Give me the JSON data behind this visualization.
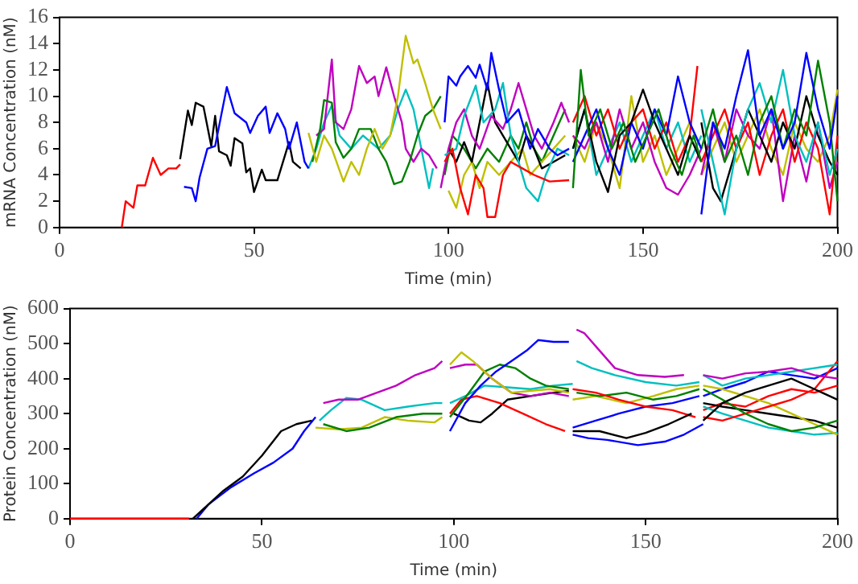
{
  "chart_data": [
    {
      "type": "line",
      "xlabel": "Time (min)",
      "ylabel": "mRNA Concentration (nM)",
      "xlim": [
        0,
        200
      ],
      "xticks": [
        0,
        50,
        100,
        150,
        200
      ],
      "ylim": [
        0,
        16
      ],
      "yticks": [
        0,
        2,
        4,
        6,
        8,
        10,
        12,
        14,
        16
      ],
      "grid": false,
      "legend": false,
      "marker": "none",
      "line_style": "solid",
      "series": [
        {
          "color": "#ff0000",
          "x": [
            16,
            17,
            19,
            20,
            22,
            24,
            26,
            28,
            30,
            31
          ],
          "values": [
            0,
            2,
            1.5,
            3.2,
            3.2,
            5.3,
            4,
            4.5,
            4.5,
            4.8
          ]
        },
        {
          "color": "#0000ff",
          "x": [
            32,
            34,
            35,
            36,
            38,
            40,
            43,
            45,
            48,
            49,
            51,
            53,
            54,
            56,
            58,
            59,
            61,
            62,
            63,
            64
          ],
          "values": [
            3.1,
            3,
            2,
            3.8,
            6,
            6.2,
            10.7,
            8.7,
            8,
            7.2,
            8.5,
            9.2,
            7.2,
            8.7,
            7.5,
            6,
            8,
            6.5,
            5,
            4.5
          ]
        },
        {
          "color": "#000000",
          "x": [
            31,
            33,
            34,
            35,
            37,
            39,
            40,
            41,
            43,
            44,
            45,
            47,
            48,
            49,
            50,
            52,
            53,
            56,
            59,
            60,
            62
          ],
          "values": [
            5.2,
            8.9,
            7.8,
            9.5,
            9.2,
            6.2,
            8.5,
            5.8,
            5.5,
            4.7,
            6.8,
            6.4,
            4.2,
            4.5,
            2.7,
            4.4,
            3.6,
            3.6,
            6.5,
            5,
            4.5
          ]
        },
        {
          "color": "#bfbf00",
          "x": [
            64,
            66,
            68,
            70,
            73,
            75,
            77,
            79,
            81,
            83,
            85,
            87,
            89,
            91,
            92,
            94,
            96,
            98
          ],
          "values": [
            7.2,
            5,
            7,
            6,
            3.5,
            5,
            4,
            6,
            7.5,
            6,
            7,
            10,
            14.6,
            12.5,
            12.8,
            11,
            9,
            7.5
          ]
        },
        {
          "color": "#008000",
          "x": [
            65,
            67,
            68,
            70,
            71,
            73,
            75,
            77,
            80,
            82,
            84,
            86,
            88,
            90,
            92,
            94,
            96,
            98
          ],
          "values": [
            5,
            7.5,
            9.7,
            9.5,
            6.5,
            5.3,
            6,
            7.5,
            7.5,
            6,
            5,
            3.3,
            3.5,
            5,
            7,
            8.5,
            9,
            10
          ]
        },
        {
          "color": "#bf00bf",
          "x": [
            66,
            68,
            70,
            71,
            73,
            75,
            77,
            79,
            81,
            82,
            84,
            86,
            88,
            89,
            91,
            93,
            95,
            97
          ],
          "values": [
            7,
            7.5,
            12.8,
            8,
            7.5,
            9,
            12.3,
            11,
            11.5,
            10,
            12.2,
            10,
            8,
            6,
            5,
            6,
            5.5,
            4.5
          ]
        },
        {
          "color": "#00bfbf",
          "x": [
            64,
            66,
            68,
            70,
            72,
            75,
            78,
            82,
            85,
            87,
            89,
            91,
            93,
            95,
            96
          ],
          "values": [
            4.5,
            6,
            8,
            9.3,
            7,
            6,
            7,
            6,
            7,
            9,
            10.5,
            9,
            6,
            3,
            4.5
          ]
        },
        {
          "color": "#0000ff",
          "x": [
            99,
            100,
            102,
            103,
            105,
            107,
            108,
            110,
            111,
            113,
            115,
            118,
            121,
            123,
            126,
            128,
            131
          ],
          "values": [
            8,
            11.5,
            10.8,
            11.5,
            12.3,
            11.4,
            12.4,
            10.5,
            13.3,
            10.5,
            8,
            9,
            6,
            7.5,
            6,
            5.5,
            6
          ]
        },
        {
          "color": "#ff0000",
          "x": [
            99,
            101,
            103,
            105,
            107,
            109,
            110,
            112,
            114,
            116,
            119,
            122,
            126,
            131
          ],
          "values": [
            5,
            6,
            3,
            1,
            4,
            3,
            0.8,
            0.8,
            4,
            5,
            4.5,
            4,
            3.5,
            3.6
          ]
        },
        {
          "color": "#00bfbf",
          "x": [
            99,
            102,
            104,
            107,
            109,
            112,
            114,
            116,
            118,
            120,
            123,
            125,
            128,
            131
          ],
          "values": [
            5.5,
            6,
            8.5,
            10.8,
            8,
            9,
            11,
            7,
            5,
            3,
            2,
            4,
            6,
            5.5
          ]
        },
        {
          "color": "#bf00bf",
          "x": [
            98,
            100,
            102,
            104,
            106,
            108,
            111,
            114,
            116,
            118,
            120,
            122,
            124,
            127,
            129,
            131
          ],
          "values": [
            3,
            6,
            8,
            9,
            7,
            6,
            8.5,
            7.5,
            9,
            11,
            9,
            7,
            6,
            8,
            9.5,
            8
          ]
        },
        {
          "color": "#000000",
          "x": [
            100,
            102,
            104,
            106,
            108,
            110,
            112,
            114,
            116,
            118,
            120,
            122,
            124,
            127,
            130
          ],
          "values": [
            6,
            5,
            6.5,
            5,
            8,
            11,
            8,
            7,
            6,
            5,
            7,
            6,
            4.5,
            5,
            5.5
          ]
        },
        {
          "color": "#bfbf00",
          "x": [
            100,
            102,
            104,
            106,
            108,
            110,
            113,
            116,
            119,
            121,
            124,
            127,
            130
          ],
          "values": [
            2.8,
            1.5,
            4,
            5,
            3,
            5,
            4,
            5,
            6,
            4,
            5,
            6,
            7
          ]
        },
        {
          "color": "#008000",
          "x": [
            99,
            101,
            104,
            107,
            110,
            113,
            116,
            118,
            120,
            122,
            124,
            127,
            130
          ],
          "values": [
            4,
            7,
            6,
            4.5,
            6,
            5,
            7,
            6,
            8,
            6,
            5,
            7,
            9
          ]
        },
        {
          "color": "#008000",
          "x": [
            132,
            134,
            136,
            139,
            142,
            145,
            148,
            151,
            154,
            157,
            160,
            163,
            165
          ],
          "values": [
            3,
            12,
            7,
            9,
            6,
            8,
            5,
            7,
            9,
            6,
            4,
            7,
            5
          ]
        },
        {
          "color": "#000000",
          "x": [
            132,
            135,
            138,
            141,
            144,
            147,
            150,
            153,
            156,
            159,
            162,
            165
          ],
          "values": [
            6,
            9,
            5,
            2.7,
            7,
            8,
            10.5,
            8,
            6,
            4,
            7,
            5
          ]
        },
        {
          "color": "#0000ff",
          "x": [
            132,
            135,
            138,
            141,
            144,
            147,
            150,
            153,
            156,
            159,
            162,
            165
          ],
          "values": [
            5,
            7,
            9,
            6,
            4,
            8,
            6,
            9,
            7,
            11.5,
            8,
            6
          ]
        },
        {
          "color": "#ff0000",
          "x": [
            132,
            135,
            138,
            141,
            144,
            147,
            150,
            153,
            156,
            159,
            162,
            164
          ],
          "values": [
            8,
            10,
            7,
            9,
            6,
            8,
            9,
            6,
            8,
            5,
            7,
            12.3
          ]
        },
        {
          "color": "#bf00bf",
          "x": [
            132,
            135,
            138,
            141,
            144,
            147,
            150,
            153,
            156,
            159,
            162,
            165
          ],
          "values": [
            7,
            6,
            8,
            5,
            9,
            6,
            8,
            5,
            3,
            2.5,
            4,
            6
          ]
        },
        {
          "color": "#00bfbf",
          "x": [
            132,
            135,
            138,
            141,
            144,
            147,
            150,
            153,
            156,
            159,
            162,
            165
          ],
          "values": [
            6,
            9,
            4,
            6,
            8,
            5,
            7,
            9,
            6,
            8,
            5,
            7
          ]
        },
        {
          "color": "#bfbf00",
          "x": [
            132,
            135,
            138,
            141,
            144,
            147,
            150,
            153,
            156,
            159,
            162,
            165
          ],
          "values": [
            7,
            5,
            8,
            6,
            3,
            10,
            5,
            7,
            4,
            6,
            8,
            6
          ]
        },
        {
          "color": "#0000ff",
          "x": [
            165,
            168,
            171,
            174,
            177,
            180,
            183,
            186,
            189,
            192,
            195,
            198,
            200
          ],
          "values": [
            1,
            8,
            6,
            10,
            13.5,
            7,
            9,
            6,
            8,
            13.3,
            9,
            6,
            10
          ]
        },
        {
          "color": "#008000",
          "x": [
            165,
            168,
            171,
            174,
            177,
            180,
            183,
            186,
            189,
            192,
            195,
            198,
            200
          ],
          "values": [
            6,
            9,
            5,
            7,
            4,
            8,
            10,
            6,
            9,
            7,
            12.7,
            8,
            2
          ]
        },
        {
          "color": "#00bfbf",
          "x": [
            165,
            168,
            171,
            174,
            177,
            180,
            183,
            186,
            189,
            192,
            195,
            198,
            200
          ],
          "values": [
            9,
            5,
            1,
            6,
            9,
            11,
            8,
            12,
            7,
            5,
            8,
            4,
            6
          ]
        },
        {
          "color": "#000000",
          "x": [
            165,
            168,
            170,
            174,
            177,
            180,
            183,
            186,
            189,
            192,
            195,
            198,
            200
          ],
          "values": [
            8,
            3,
            2,
            6,
            9,
            7,
            5,
            8,
            6,
            10,
            7,
            5,
            4
          ]
        },
        {
          "color": "#ff0000",
          "x": [
            165,
            168,
            171,
            174,
            177,
            180,
            183,
            186,
            189,
            192,
            195,
            198,
            200
          ],
          "values": [
            5,
            7,
            9,
            6,
            8,
            4,
            7,
            9,
            5,
            8,
            6,
            1,
            7
          ]
        },
        {
          "color": "#bf00bf",
          "x": [
            165,
            168,
            171,
            174,
            177,
            180,
            183,
            186,
            189,
            192,
            195,
            198,
            200
          ],
          "values": [
            4,
            8,
            5,
            9,
            7,
            6,
            9,
            2,
            7,
            3.5,
            8,
            3,
            5
          ]
        },
        {
          "color": "#bfbf00",
          "x": [
            165,
            168,
            171,
            174,
            177,
            180,
            183,
            186,
            189,
            192,
            195,
            198,
            200
          ],
          "values": [
            4,
            6,
            8,
            5,
            7,
            9,
            6,
            4,
            8,
            6,
            5,
            7,
            10.5
          ]
        }
      ]
    },
    {
      "type": "line",
      "xlabel": "Time (min)",
      "ylabel": "Protein Concentration (nM)",
      "xlim": [
        0,
        200
      ],
      "xticks": [
        0,
        50,
        100,
        150,
        200
      ],
      "ylim": [
        0,
        600
      ],
      "yticks": [
        0,
        100,
        200,
        300,
        400,
        500,
        600
      ],
      "grid": false,
      "legend": false,
      "marker": "none",
      "line_style": "solid",
      "series": [
        {
          "color": "#ff0000",
          "x": [
            0,
            31
          ],
          "values": [
            0,
            0
          ]
        },
        {
          "color": "#000000",
          "x": [
            32,
            35,
            40,
            45,
            50,
            55,
            59,
            63
          ],
          "values": [
            0,
            30,
            80,
            120,
            180,
            250,
            270,
            280
          ]
        },
        {
          "color": "#0000ff",
          "x": [
            33,
            36,
            42,
            48,
            53,
            58,
            61,
            64
          ],
          "values": [
            0,
            40,
            90,
            130,
            160,
            200,
            250,
            290
          ]
        },
        {
          "color": "#bf00bf",
          "x": [
            66,
            70,
            75,
            80,
            85,
            90,
            95,
            97
          ],
          "values": [
            330,
            340,
            340,
            360,
            380,
            410,
            430,
            450
          ]
        },
        {
          "color": "#00bfbf",
          "x": [
            65,
            68,
            72,
            76,
            82,
            88,
            95,
            97
          ],
          "values": [
            280,
            310,
            345,
            340,
            310,
            320,
            330,
            330
          ]
        },
        {
          "color": "#008000",
          "x": [
            66,
            72,
            78,
            85,
            92,
            97
          ],
          "values": [
            270,
            250,
            260,
            290,
            300,
            300
          ]
        },
        {
          "color": "#bfbf00",
          "x": [
            64,
            70,
            76,
            82,
            88,
            95,
            97
          ],
          "values": [
            260,
            255,
            260,
            290,
            280,
            275,
            290
          ]
        },
        {
          "color": "#bfbf00",
          "x": [
            99,
            102,
            105,
            110,
            115,
            125,
            130
          ],
          "values": [
            440,
            475,
            450,
            400,
            360,
            370,
            360
          ]
        },
        {
          "color": "#bf00bf",
          "x": [
            99,
            103,
            106,
            110,
            115,
            120,
            125,
            130
          ],
          "values": [
            430,
            440,
            440,
            400,
            360,
            350,
            360,
            350
          ]
        },
        {
          "color": "#0000ff",
          "x": [
            99,
            103,
            107,
            111,
            115,
            119,
            122,
            126,
            130
          ],
          "values": [
            250,
            330,
            380,
            420,
            450,
            480,
            510,
            505,
            505
          ]
        },
        {
          "color": "#008000",
          "x": [
            99,
            104,
            108,
            112,
            116,
            120,
            124,
            130
          ],
          "values": [
            290,
            360,
            420,
            440,
            430,
            400,
            380,
            370
          ]
        },
        {
          "color": "#00bfbf",
          "x": [
            99,
            103,
            108,
            114,
            120,
            126,
            131
          ],
          "values": [
            330,
            350,
            380,
            375,
            370,
            380,
            385
          ]
        },
        {
          "color": "#ff0000",
          "x": [
            99,
            102,
            106,
            112,
            118,
            124,
            129
          ],
          "values": [
            300,
            340,
            350,
            330,
            300,
            270,
            250
          ]
        },
        {
          "color": "#000000",
          "x": [
            100,
            104,
            107,
            110,
            114,
            120,
            126,
            130
          ],
          "values": [
            300,
            280,
            275,
            300,
            340,
            350,
            360,
            365
          ]
        },
        {
          "color": "#bf00bf",
          "x": [
            132,
            134,
            138,
            142,
            148,
            155,
            160
          ],
          "values": [
            540,
            530,
            480,
            430,
            410,
            405,
            410
          ]
        },
        {
          "color": "#00bfbf",
          "x": [
            132,
            136,
            142,
            150,
            158,
            164
          ],
          "values": [
            450,
            430,
            410,
            390,
            380,
            390
          ]
        },
        {
          "color": "#0000ff",
          "x": [
            131,
            135,
            140,
            148,
            155,
            160,
            165
          ],
          "values": [
            240,
            230,
            225,
            210,
            220,
            240,
            270
          ]
        },
        {
          "color": "#000000",
          "x": [
            131,
            138,
            145,
            150,
            156,
            162
          ],
          "values": [
            250,
            250,
            230,
            245,
            270,
            300
          ]
        },
        {
          "color": "#ff0000",
          "x": [
            131,
            137,
            143,
            150,
            157,
            163
          ],
          "values": [
            370,
            360,
            340,
            320,
            310,
            290
          ]
        },
        {
          "color": "#008000",
          "x": [
            132,
            138,
            145,
            152,
            158,
            164
          ],
          "values": [
            360,
            350,
            360,
            340,
            350,
            370
          ]
        },
        {
          "color": "#bfbf00",
          "x": [
            131,
            137,
            145,
            152,
            158,
            164
          ],
          "values": [
            340,
            350,
            330,
            350,
            370,
            380
          ]
        },
        {
          "color": "#0000ff",
          "x": [
            131,
            137,
            143,
            150,
            157,
            164
          ],
          "values": [
            260,
            280,
            300,
            320,
            330,
            350
          ]
        },
        {
          "color": "#bf00bf",
          "x": [
            165,
            170,
            176,
            182,
            188,
            194,
            200
          ],
          "values": [
            410,
            400,
            415,
            420,
            430,
            410,
            400
          ]
        },
        {
          "color": "#00bfbf",
          "x": [
            165,
            170,
            176,
            182,
            188,
            194,
            200
          ],
          "values": [
            410,
            380,
            400,
            410,
            420,
            430,
            440
          ]
        },
        {
          "color": "#000000",
          "x": [
            165,
            170,
            176,
            182,
            188,
            194,
            200
          ],
          "values": [
            280,
            330,
            360,
            380,
            400,
            370,
            340
          ]
        },
        {
          "color": "#008000",
          "x": [
            165,
            170,
            176,
            182,
            188,
            194,
            200
          ],
          "values": [
            370,
            340,
            300,
            270,
            250,
            260,
            280
          ]
        },
        {
          "color": "#ff0000",
          "x": [
            165,
            170,
            176,
            182,
            188,
            194,
            200
          ],
          "values": [
            290,
            280,
            300,
            320,
            340,
            370,
            450
          ]
        },
        {
          "color": "#bfbf00",
          "x": [
            165,
            170,
            176,
            182,
            188,
            194,
            200
          ],
          "values": [
            380,
            370,
            350,
            330,
            300,
            270,
            240
          ]
        },
        {
          "color": "#0000ff",
          "x": [
            165,
            170,
            176,
            182,
            188,
            194,
            200
          ],
          "values": [
            350,
            370,
            390,
            420,
            410,
            400,
            430
          ]
        },
        {
          "color": "#00bfbf",
          "x": [
            165,
            170,
            176,
            182,
            188,
            194,
            200
          ],
          "values": [
            320,
            300,
            280,
            260,
            250,
            240,
            245
          ]
        },
        {
          "color": "#000000",
          "x": [
            165,
            170,
            176,
            182,
            188,
            194,
            200
          ],
          "values": [
            330,
            320,
            310,
            300,
            290,
            280,
            260
          ]
        },
        {
          "color": "#ff0000",
          "x": [
            165,
            170,
            176,
            182,
            188,
            194,
            200
          ],
          "values": [
            310,
            330,
            320,
            350,
            370,
            360,
            380
          ]
        }
      ]
    }
  ]
}
